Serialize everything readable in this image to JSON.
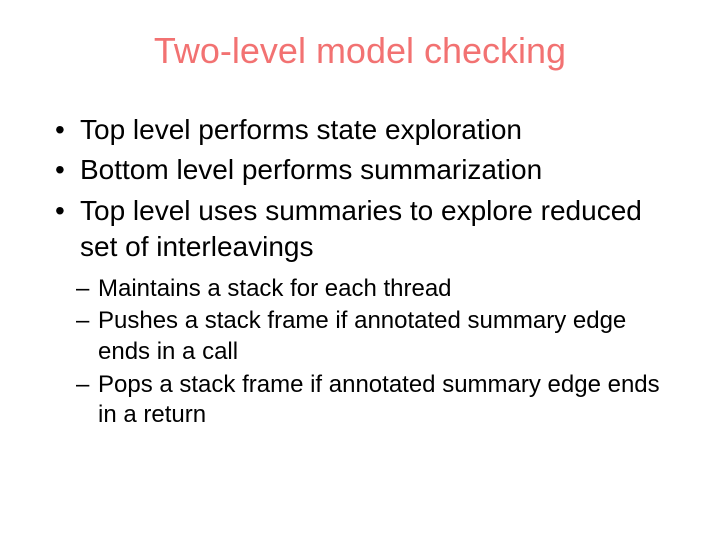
{
  "title": "Two-level model checking",
  "title_color": "#f27272",
  "title_fontsize": 36,
  "body_color": "#000000",
  "background_color": "#ffffff",
  "bullets": [
    {
      "text": "Top level performs state exploration"
    },
    {
      "text": "Bottom level performs summarization"
    },
    {
      "text": "Top level uses summaries to explore reduced set of interleavings"
    }
  ],
  "sub_bullets": [
    {
      "text": "Maintains a stack for each thread"
    },
    {
      "text": "Pushes a stack frame if annotated summary edge ends in a call"
    },
    {
      "text": "Pops a stack frame if annotated summary edge ends in a return"
    }
  ]
}
